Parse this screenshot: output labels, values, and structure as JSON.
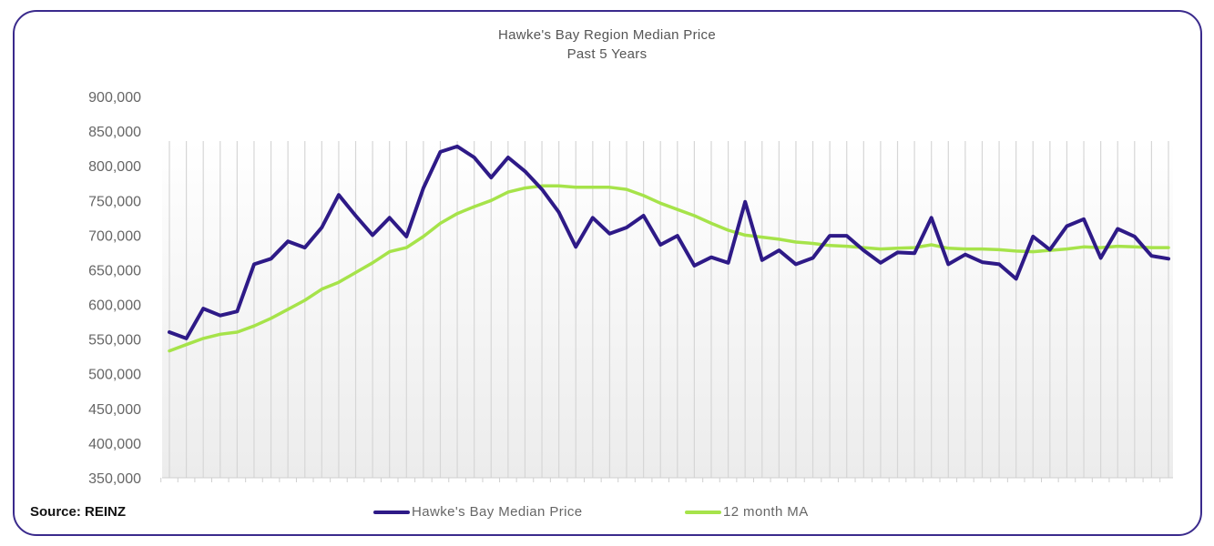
{
  "chart_data": {
    "type": "line",
    "title": "Hawke's Bay Region Median Price",
    "subtitle": "Past 5 Years",
    "xlabel": "",
    "ylabel": "",
    "ylim": [
      350000,
      900000
    ],
    "yticks": [
      "900,000",
      "850,000",
      "800,000",
      "750,000",
      "700,000",
      "650,000",
      "600,000",
      "550,000",
      "500,000",
      "450,000",
      "400,000",
      "350,000"
    ],
    "ytick_values": [
      900000,
      850000,
      800000,
      750000,
      700000,
      650000,
      600000,
      550000,
      500000,
      450000,
      400000,
      350000
    ],
    "grid": "vertical",
    "legend_position": "bottom",
    "series": [
      {
        "name": "Hawke's Bay Median Price",
        "color": "#2e1a87",
        "values": [
          560000,
          551000,
          594000,
          584000,
          590000,
          658000,
          666000,
          691000,
          682000,
          711000,
          758000,
          728000,
          700000,
          725000,
          698000,
          768000,
          820000,
          828000,
          812000,
          783000,
          812000,
          792000,
          766000,
          733000,
          683000,
          725000,
          702000,
          711000,
          728000,
          686000,
          699000,
          656000,
          668000,
          660000,
          748000,
          664000,
          678000,
          658000,
          667000,
          699000,
          699000,
          678000,
          660000,
          675000,
          674000,
          725000,
          658000,
          672000,
          661000,
          658000,
          637000,
          698000,
          679000,
          713000,
          723000,
          667000,
          709000,
          698000,
          670000,
          666000
        ]
      },
      {
        "name": "12 month MA",
        "color": "#a6e34a",
        "values": [
          533000,
          542000,
          551000,
          557000,
          560000,
          569000,
          580000,
          593000,
          606000,
          622000,
          632000,
          646000,
          660000,
          676000,
          682000,
          698000,
          717000,
          731000,
          741000,
          750000,
          762000,
          768000,
          771000,
          771000,
          769000,
          769000,
          769000,
          766000,
          757000,
          746000,
          737000,
          728000,
          717000,
          707000,
          700000,
          697000,
          694000,
          690000,
          688000,
          685000,
          684000,
          682000,
          680000,
          681000,
          682000,
          686000,
          681000,
          680000,
          680000,
          679000,
          677000,
          676000,
          678000,
          680000,
          683000,
          682000,
          684000,
          683000,
          682000,
          682000
        ]
      }
    ]
  },
  "source_label": "Source: REINZ"
}
